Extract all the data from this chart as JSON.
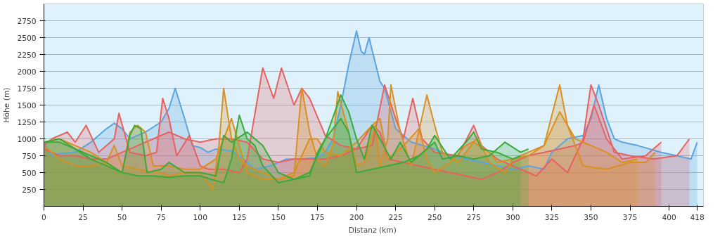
{
  "chart_data": {
    "type": "area",
    "xlabel": "Distanz  (km)",
    "ylabel": "Höhe (m)",
    "xlim": [
      0,
      422
    ],
    "ylim": [
      0,
      3000
    ],
    "xticks": [
      0,
      25,
      50,
      75,
      100,
      125,
      150,
      175,
      200,
      225,
      250,
      275,
      300,
      325,
      350,
      375,
      400,
      418
    ],
    "yticks": [
      250,
      500,
      750,
      1000,
      1250,
      1500,
      1750,
      2000,
      2250,
      2500,
      2750
    ],
    "grid": "y",
    "series": [
      {
        "color": "#5aa5e0",
        "x": [
          0,
          5,
          10,
          20,
          30,
          40,
          45,
          50,
          55,
          60,
          65,
          75,
          80,
          84,
          90,
          95,
          100,
          105,
          110,
          120,
          125,
          135,
          145,
          155,
          165,
          175,
          180,
          185,
          190,
          195,
          200,
          203,
          205,
          208,
          215,
          218,
          225,
          235,
          250,
          260,
          275,
          290,
          300,
          310,
          320,
          325,
          330,
          335,
          345,
          350,
          355,
          360,
          365,
          370,
          380,
          395,
          405,
          414,
          418
        ],
        "values": [
          950,
          750,
          780,
          800,
          950,
          1150,
          1230,
          1150,
          1000,
          1050,
          1100,
          1250,
          1450,
          1750,
          1300,
          900,
          870,
          800,
          850,
          820,
          750,
          550,
          600,
          700,
          700,
          720,
          800,
          1000,
          1500,
          2100,
          2600,
          2300,
          2250,
          2500,
          1850,
          1750,
          1150,
          950,
          850,
          750,
          680,
          600,
          550,
          600,
          550,
          800,
          900,
          1000,
          1050,
          1300,
          1800,
          1300,
          1000,
          950,
          900,
          800,
          750,
          700,
          950
        ]
      },
      {
        "color": "#e86060",
        "x": [
          0,
          5,
          15,
          20,
          27,
          35,
          45,
          48,
          55,
          65,
          72,
          76,
          80,
          85,
          93,
          100,
          105,
          115,
          125,
          130,
          140,
          147,
          152,
          160,
          165,
          170,
          180,
          190,
          200,
          210,
          218,
          225,
          230,
          236,
          242,
          250,
          265,
          275,
          280,
          290,
          300,
          310,
          315,
          325,
          335,
          345,
          350,
          355,
          365,
          375,
          390,
          405,
          413
        ],
        "values": [
          900,
          1000,
          1100,
          950,
          1200,
          800,
          1000,
          1380,
          800,
          750,
          800,
          1600,
          1300,
          750,
          1050,
          600,
          550,
          550,
          500,
          700,
          2050,
          1600,
          2050,
          1500,
          1750,
          1600,
          1050,
          900,
          850,
          900,
          1800,
          1300,
          1000,
          1600,
          1000,
          800,
          750,
          1200,
          900,
          700,
          600,
          500,
          450,
          700,
          500,
          1000,
          1800,
          1500,
          800,
          750,
          700,
          750,
          1000
        ]
      },
      {
        "color": "#e86060",
        "x": [
          0,
          10,
          20,
          30,
          40,
          50,
          60,
          70,
          80,
          90,
          100,
          110,
          120,
          130,
          140,
          150,
          160,
          170,
          180,
          190,
          200,
          210,
          215,
          220,
          230,
          240,
          250,
          260,
          270,
          280,
          290,
          300,
          310,
          320,
          330,
          340,
          345,
          352,
          360,
          370,
          385,
          395
        ],
        "values": [
          850,
          750,
          750,
          700,
          700,
          800,
          900,
          1000,
          1100,
          1000,
          950,
          1000,
          1000,
          950,
          700,
          650,
          700,
          700,
          700,
          750,
          850,
          1200,
          1100,
          700,
          650,
          600,
          550,
          500,
          450,
          400,
          500,
          650,
          750,
          800,
          850,
          900,
          950,
          1500,
          1000,
          700,
          750,
          950
        ]
      },
      {
        "color": "#d99020",
        "x": [
          0,
          10,
          20,
          30,
          40,
          45,
          50,
          60,
          70,
          75,
          80,
          90,
          100,
          108,
          112,
          115,
          120,
          125,
          130,
          140,
          150,
          160,
          165,
          170,
          175,
          180,
          185,
          188,
          195,
          200,
          205,
          212,
          215,
          220,
          222,
          228,
          235,
          245,
          250,
          255,
          265,
          275,
          285,
          290,
          300,
          310,
          320,
          330,
          335,
          340,
          345,
          360,
          375,
          385,
          391
        ],
        "values": [
          900,
          700,
          600,
          600,
          650,
          900,
          600,
          550,
          500,
          500,
          450,
          500,
          500,
          250,
          900,
          1750,
          1000,
          700,
          600,
          500,
          400,
          450,
          1750,
          1100,
          700,
          600,
          900,
          1700,
          1100,
          600,
          650,
          1200,
          600,
          1000,
          1800,
          1100,
          600,
          1650,
          1200,
          800,
          650,
          950,
          800,
          650,
          700,
          750,
          900,
          1800,
          1200,
          900,
          600,
          550,
          650,
          650,
          800
        ]
      },
      {
        "color": "#d99020",
        "x": [
          0,
          10,
          20,
          30,
          40,
          50,
          55,
          60,
          65,
          70,
          80,
          90,
          100,
          110,
          120,
          125,
          130,
          140,
          150,
          160,
          170,
          175,
          180,
          190,
          200,
          210,
          215,
          220,
          230,
          240,
          245,
          250,
          260,
          270,
          278,
          285,
          295,
          300,
          310,
          320,
          330,
          340,
          350,
          360,
          370,
          380
        ],
        "values": [
          950,
          1000,
          900,
          800,
          650,
          500,
          1100,
          1200,
          1100,
          600,
          600,
          550,
          550,
          700,
          1300,
          900,
          500,
          400,
          400,
          500,
          1000,
          1000,
          800,
          750,
          950,
          1200,
          1300,
          700,
          900,
          1150,
          700,
          500,
          650,
          900,
          1000,
          650,
          500,
          700,
          800,
          900,
          1400,
          1000,
          900,
          800,
          650,
          700
        ]
      },
      {
        "color": "#3aaa3a",
        "x": [
          0,
          10,
          20,
          30,
          40,
          50,
          60,
          70,
          80,
          90,
          100,
          110,
          115,
          120,
          125,
          130,
          135,
          140,
          150,
          160,
          170,
          175,
          180,
          185,
          190,
          195,
          200,
          210,
          220,
          230,
          240,
          250,
          255,
          265,
          275,
          285,
          295,
          305,
          310
        ],
        "values": [
          950,
          1000,
          850,
          700,
          600,
          500,
          450,
          450,
          430,
          450,
          450,
          380,
          350,
          700,
          1350,
          1000,
          900,
          600,
          350,
          400,
          450,
          800,
          1000,
          1150,
          1300,
          1100,
          500,
          550,
          600,
          650,
          750,
          950,
          700,
          750,
          700,
          750,
          950,
          800,
          850
        ]
      },
      {
        "color": "#3aaa3a",
        "x": [
          0,
          10,
          20,
          30,
          40,
          50,
          55,
          58,
          62,
          66,
          75,
          80,
          90,
          100,
          110,
          115,
          120,
          130,
          135,
          140,
          150,
          160,
          170,
          180,
          190,
          195,
          200,
          205,
          210,
          215,
          222,
          228,
          235,
          245,
          250,
          260,
          270,
          275,
          280,
          290,
          300,
          305
        ],
        "values": [
          950,
          950,
          850,
          750,
          650,
          500,
          1050,
          1200,
          1150,
          500,
          550,
          650,
          500,
          500,
          450,
          1050,
          950,
          1100,
          1000,
          900,
          500,
          400,
          500,
          1000,
          1650,
          1400,
          1000,
          700,
          1200,
          1000,
          700,
          950,
          650,
          850,
          1050,
          700,
          950,
          1100,
          850,
          800,
          700,
          750
        ]
      }
    ]
  }
}
